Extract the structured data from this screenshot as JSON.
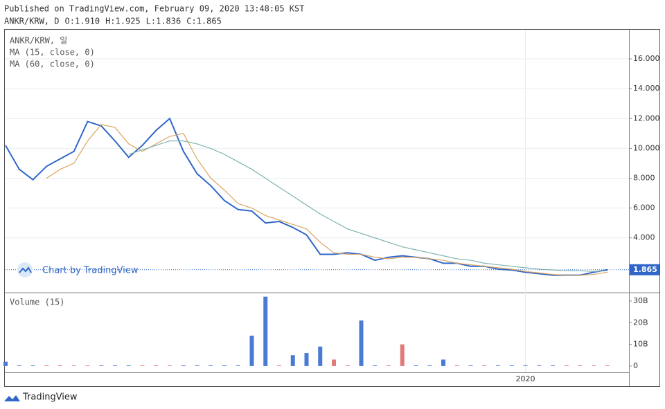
{
  "header": {
    "published": "Published on TradingView.com, February 09, 2020 13:48:05 KST",
    "symbol": "ANKR/KRW, D",
    "ohlc": [
      {
        "label": "O:",
        "value": "1.910"
      },
      {
        "label": "H:",
        "value": "1.925"
      },
      {
        "label": "L:",
        "value": "1.836"
      },
      {
        "label": "C:",
        "value": "1.865"
      }
    ],
    "watermark": "Chart by TradingView",
    "footer": "TradingView"
  },
  "chart_data": [
    {
      "type": "line",
      "categories": [
        null,
        null,
        null,
        null,
        null,
        null,
        null,
        null,
        null,
        null,
        null,
        null,
        null,
        null,
        null,
        null,
        null,
        null,
        null,
        null,
        null,
        null,
        null,
        null,
        null,
        null,
        null,
        null,
        null,
        null,
        null,
        null,
        null,
        null,
        null,
        null,
        null,
        null,
        "2020",
        null,
        null,
        null,
        null,
        null,
        null
      ],
      "series": [
        {
          "name": "ANKR/KRW, 일",
          "color": "#2f66c8",
          "values": [
            10.2,
            8.6,
            7.9,
            8.8,
            9.3,
            9.8,
            11.8,
            11.5,
            10.5,
            9.4,
            10.2,
            11.2,
            12.0,
            9.8,
            8.3,
            7.5,
            6.5,
            5.9,
            5.8,
            5.0,
            5.1,
            4.7,
            4.2,
            2.9,
            2.9,
            3.0,
            2.9,
            2.5,
            2.7,
            2.8,
            2.7,
            2.6,
            2.3,
            2.3,
            2.1,
            2.1,
            1.9,
            1.85,
            1.7,
            1.6,
            1.5,
            1.5,
            1.5,
            1.7,
            1.865
          ],
          "value_labels": [
            null,
            null,
            null,
            null,
            null,
            null,
            null,
            null,
            null,
            null,
            null,
            null,
            null,
            null,
            null,
            null,
            null,
            null,
            null,
            null,
            null,
            null,
            null,
            null,
            null,
            null,
            null,
            null,
            null,
            null,
            null,
            null,
            null,
            null,
            null,
            null,
            null,
            null,
            null,
            null,
            null,
            null,
            null,
            null,
            "1.865"
          ]
        },
        {
          "name": "MA (15, close, 0)",
          "color": "#d9a55e",
          "values": [
            null,
            null,
            null,
            8.0,
            8.6,
            9.0,
            10.5,
            11.6,
            11.4,
            10.3,
            9.8,
            10.3,
            10.8,
            11.0,
            9.3,
            8.0,
            7.2,
            6.3,
            6.0,
            5.5,
            5.2,
            4.9,
            4.6,
            3.7,
            3.0,
            2.9,
            2.9,
            2.7,
            2.6,
            2.7,
            2.7,
            2.6,
            2.5,
            2.3,
            2.2,
            2.1,
            2.0,
            1.9,
            1.75,
            1.65,
            1.55,
            1.5,
            1.5,
            1.55,
            1.7
          ]
        },
        {
          "name": "MA (60, close, 0)",
          "color": "#7fb3b3",
          "values": [
            null,
            null,
            null,
            null,
            null,
            null,
            null,
            null,
            null,
            9.6,
            9.9,
            10.2,
            10.5,
            10.5,
            10.3,
            10.0,
            9.6,
            9.1,
            8.6,
            8.0,
            7.4,
            6.8,
            6.2,
            5.6,
            5.1,
            4.6,
            4.3,
            4.0,
            3.7,
            3.4,
            3.2,
            3.0,
            2.8,
            2.6,
            2.5,
            2.3,
            2.2,
            2.1,
            2.0,
            1.9,
            1.85,
            1.8,
            1.8,
            1.75,
            1.8
          ]
        }
      ],
      "ylim": [
        0.37,
        17.95
      ],
      "yticks": [
        {
          "value": 4,
          "label": "4.000"
        },
        {
          "value": 6,
          "label": "6.000"
        },
        {
          "value": 8,
          "label": "8.000"
        },
        {
          "value": 10,
          "label": "10.000"
        },
        {
          "value": 12,
          "label": "12.000"
        },
        {
          "value": 14,
          "label": "14.000"
        },
        {
          "value": 16,
          "label": "16.000"
        }
      ],
      "grid": true
    },
    {
      "type": "bar",
      "title": "Volume (15)",
      "values": [
        2,
        0.3,
        0.3,
        0.3,
        0.3,
        0.3,
        0.3,
        0.3,
        0.3,
        0.3,
        0.3,
        0.3,
        0.3,
        0.3,
        0.3,
        0.3,
        0.3,
        0.3,
        14,
        32,
        0.3,
        5,
        6,
        9,
        3,
        0.3,
        21,
        0.3,
        0.3,
        10,
        0.3,
        0.3,
        3,
        0.3,
        0.3,
        0.3,
        0.3,
        0.3,
        0.3,
        0.3,
        0.3,
        0.3,
        0.3,
        0.3,
        0.3
      ],
      "colors": {
        "up": "#e07b7b",
        "down": "#4a7bd4"
      },
      "ylim": [
        -2.9,
        33.5
      ],
      "yticks": [
        {
          "value": 0,
          "label": "0"
        },
        {
          "value": 10,
          "label": "10B"
        },
        {
          "value": 20,
          "label": "20B"
        },
        {
          "value": 30,
          "label": "30B"
        }
      ]
    }
  ]
}
